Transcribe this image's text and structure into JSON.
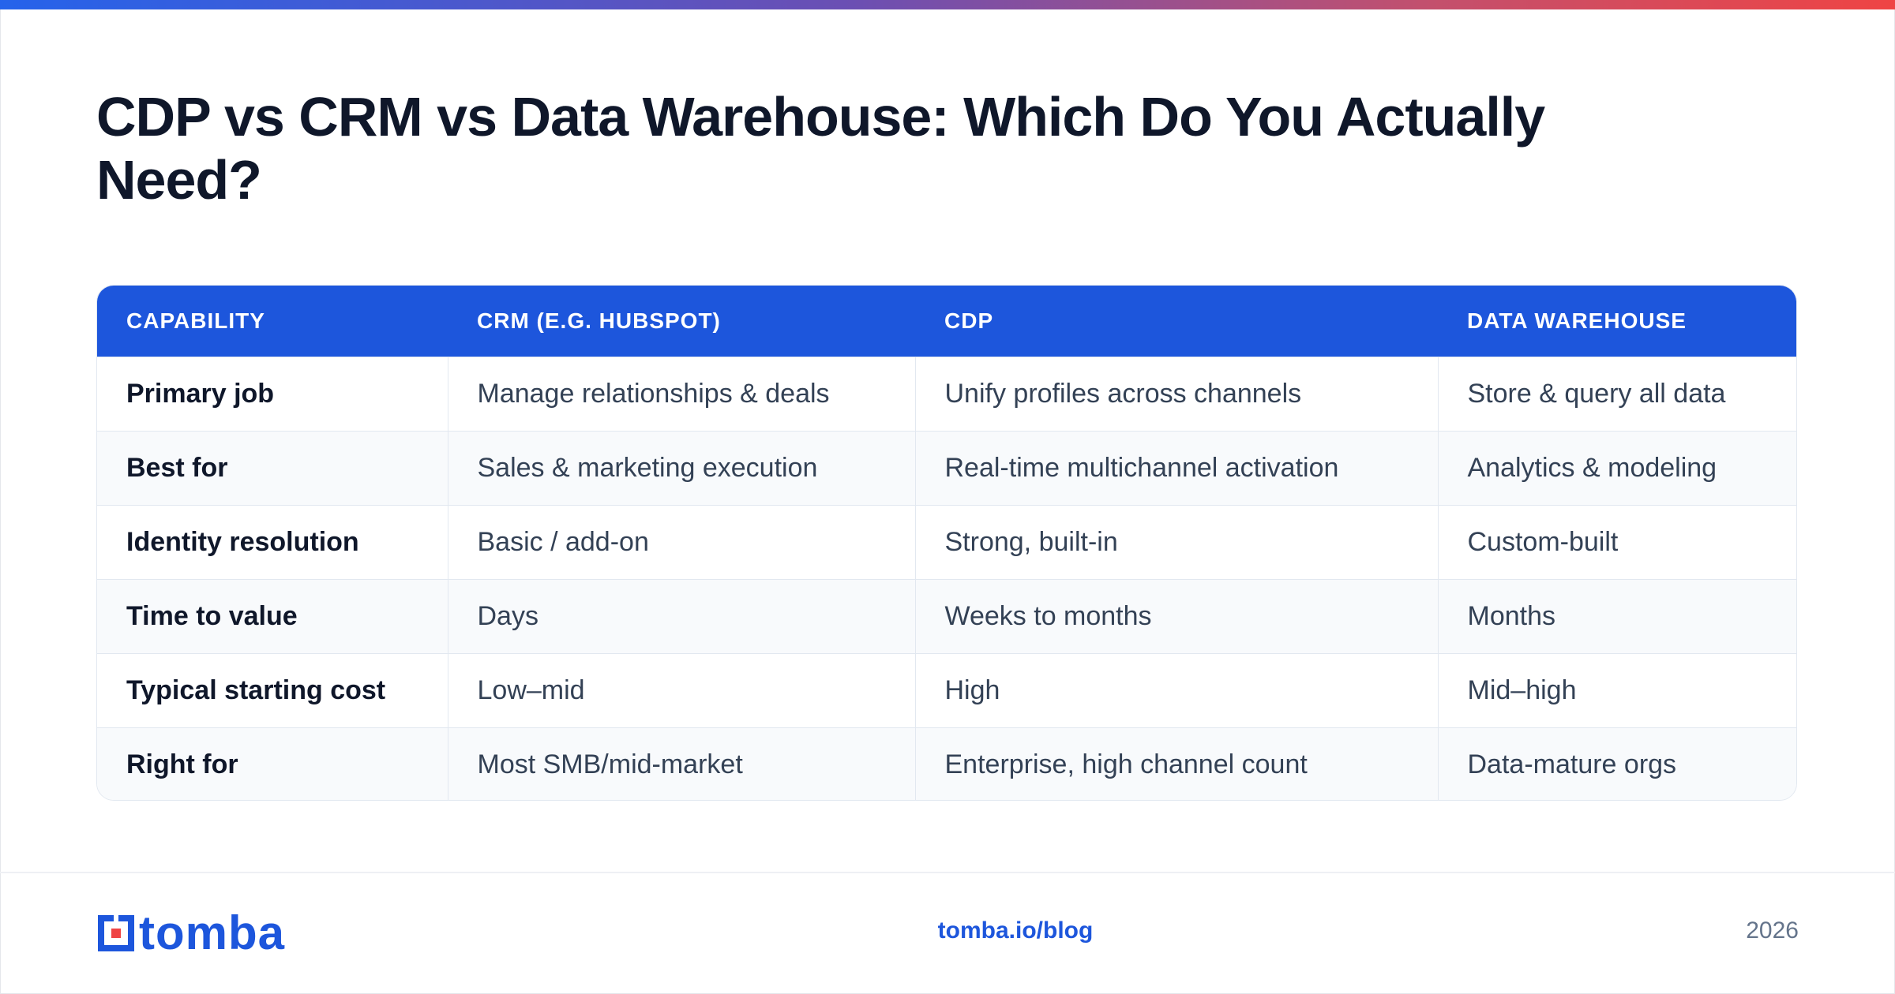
{
  "title": "CDP vs CRM vs Data Warehouse: Which Do You Actually Need?",
  "table": {
    "headers": [
      "CAPABILITY",
      "CRM (E.G. HUBSPOT)",
      "CDP",
      "DATA WAREHOUSE"
    ],
    "rows": [
      [
        "Primary job",
        "Manage relationships & deals",
        "Unify profiles across channels",
        "Store & query all data"
      ],
      [
        "Best for",
        "Sales & marketing execution",
        "Real-time multichannel activation",
        "Analytics & modeling"
      ],
      [
        "Identity resolution",
        "Basic / add-on",
        "Strong, built-in",
        "Custom-built"
      ],
      [
        "Time to value",
        "Days",
        "Weeks to months",
        "Months"
      ],
      [
        "Typical starting cost",
        "Low–mid",
        "High",
        "Mid–high"
      ],
      [
        "Right for",
        "Most SMB/mid-market",
        "Enterprise, high channel count",
        "Data-mature orgs"
      ]
    ]
  },
  "footer": {
    "logo_text": "tomba",
    "url": "tomba.io/blog",
    "year": "2026"
  },
  "colors": {
    "brand_blue": "#1d56dc",
    "logo_red": "#ef4444",
    "title": "#0f172a"
  },
  "icons": {
    "logo": "tomba-logo-icon"
  }
}
